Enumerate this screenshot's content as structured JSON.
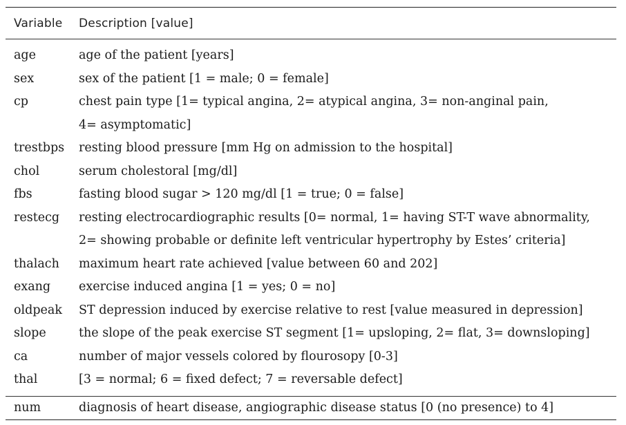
{
  "header": {
    "variable": "Variable",
    "description": "Description [value]"
  },
  "rows": [
    {
      "name": "age",
      "desc": [
        "age of the patient [years]"
      ]
    },
    {
      "name": "sex",
      "desc": [
        "sex of the patient [1 = male; 0 = female]"
      ]
    },
    {
      "name": "cp",
      "desc": [
        "chest pain type [1= typical angina, 2= atypical angina, 3= non-anginal pain,",
        "4= asymptomatic]"
      ]
    },
    {
      "name": "trestbps",
      "desc": [
        "resting blood pressure [mm Hg on admission to the hospital]"
      ]
    },
    {
      "name": "chol",
      "desc": [
        "serum cholestoral [mg/dl]"
      ]
    },
    {
      "name": "fbs",
      "desc": [
        "fasting blood sugar > 120 mg/dl [1 = true; 0 = false]"
      ]
    },
    {
      "name": "restecg",
      "desc": [
        "resting electrocardiographic results [0= normal, 1= having ST-T wave abnormality,",
        "2= showing probable or definite left ventricular hypertrophy by Estes’ criteria]"
      ]
    },
    {
      "name": "thalach",
      "desc": [
        "maximum heart rate achieved [value between 60 and 202]"
      ]
    },
    {
      "name": "exang",
      "desc": [
        "exercise induced angina [1 = yes; 0 = no]"
      ]
    },
    {
      "name": "oldpeak",
      "desc": [
        "ST depression induced by exercise relative to rest [value measured in depression]"
      ]
    },
    {
      "name": "slope",
      "desc": [
        "the slope of the peak exercise ST segment [1= upsloping, 2= flat, 3= downsloping]"
      ]
    },
    {
      "name": "ca",
      "desc": [
        "number of major vessels colored by flourosopy [0-3]"
      ]
    },
    {
      "name": "thal",
      "desc": [
        "[3 = normal; 6 = fixed defect; 7 = reversable defect]"
      ]
    }
  ],
  "footer": {
    "name": "num",
    "desc": "diagnosis of heart disease, angiographic disease status [0 (no presence) to 4]"
  }
}
